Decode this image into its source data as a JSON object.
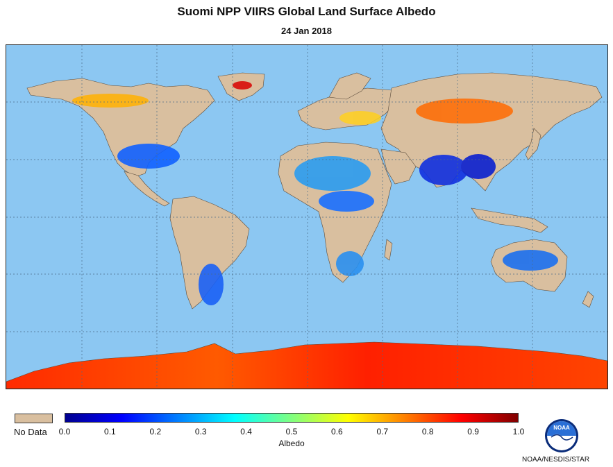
{
  "header": {
    "title": "Suomi NPP VIIRS Global Land Surface Albedo",
    "date": "24 Jan 2018"
  },
  "map": {
    "ocean_color": "#8cc7f2",
    "land_nodata_color": "#d9bf9f",
    "gridline_color": "#4a6b86"
  },
  "legend": {
    "nodata_label": "No Data",
    "colorbar_label": "Albedo",
    "ticks": [
      "0.0",
      "0.1",
      "0.2",
      "0.3",
      "0.4",
      "0.5",
      "0.6",
      "0.7",
      "0.8",
      "0.9",
      "1.0"
    ],
    "range": [
      0.0,
      1.0
    ],
    "colormap": [
      "#00008f",
      "#0000ff",
      "#0080ff",
      "#00ffff",
      "#80ff80",
      "#ffff00",
      "#ff8000",
      "#ff0000",
      "#800000"
    ]
  },
  "logo": {
    "icon": "noaa-logo-icon",
    "text": "NOAA"
  },
  "footer": {
    "credit": "NOAA/NESDIS/STAR"
  }
}
